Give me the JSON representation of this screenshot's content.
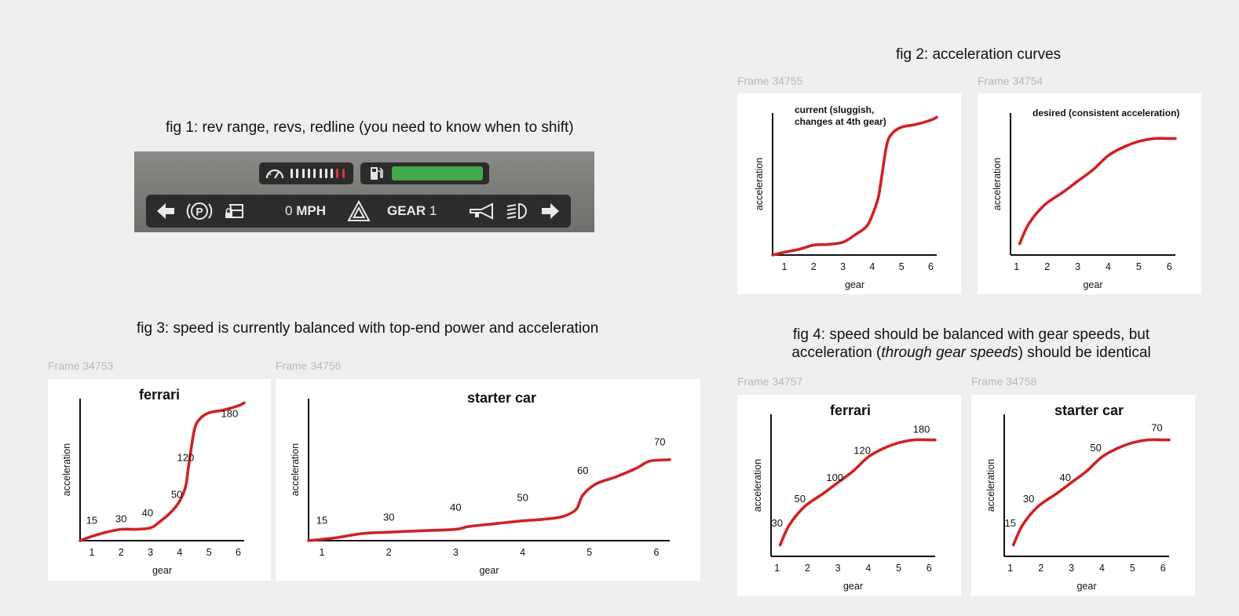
{
  "captions": {
    "fig1": "fig 1: rev range, revs, redline (you need to know when to shift)",
    "fig2": "fig 2: acceleration curves",
    "fig3": "fig 3: speed is currently balanced with top-end power and acceleration",
    "fig4_line1": "fig 4: speed should be balanced with gear speeds, but",
    "fig4_line2_pre": "acceleration (",
    "fig4_line2_em": "through gear speeds",
    "fig4_line2_post": ") should be identical"
  },
  "frames": {
    "f34755": "Frame 34755",
    "f34754": "Frame 34754",
    "f34753": "Frame 34753",
    "f34756": "Frame 34756",
    "f34757": "Frame 34757",
    "f34758": "Frame 34758"
  },
  "hud": {
    "speed_value": "0",
    "speed_unit": " MPH",
    "gear_label": "GEAR ",
    "gear_value": "1",
    "rev_segments": 10,
    "rev_active": 10,
    "redline_from": 8,
    "fuel_level": 1.0,
    "colors": {
      "fuel": "#43a84b",
      "redline": "#d9363a",
      "rev": "#e6e6e6"
    },
    "icons": [
      "arrow-left-icon",
      "parking-brake-icon",
      "door-lock-icon",
      "hazard-icon",
      "horn-icon",
      "headlight-icon",
      "arrow-right-icon",
      "tachometer-icon",
      "fuel-pump-icon"
    ]
  },
  "chart_data": [
    {
      "id": "chart-current",
      "type": "line",
      "title": "",
      "annotation": [
        "current (sluggish,",
        "changes at 4th gear)"
      ],
      "xlabel": "gear",
      "ylabel": "acceleration",
      "x_ticks": [
        "1",
        "2",
        "3",
        "4",
        "5",
        "6"
      ],
      "xlim": [
        0.6,
        6.2
      ],
      "ylim": [
        0,
        100
      ],
      "series": [
        {
          "x": [
            0.6,
            1.0,
            1.5,
            2.0,
            2.5,
            3.0,
            3.4,
            3.8,
            4.0,
            4.2,
            4.3,
            4.5,
            4.7,
            5.0,
            5.5,
            6.0,
            6.2
          ],
          "y": [
            0,
            2,
            4,
            7,
            7.5,
            9,
            14,
            20,
            28,
            40,
            52,
            78,
            86,
            90,
            92,
            95,
            97
          ]
        }
      ]
    },
    {
      "id": "chart-desired",
      "type": "line",
      "title": "",
      "annotation": [
        "desired (consistent acceleration)"
      ],
      "xlabel": "gear",
      "ylabel": "acceleration",
      "x_ticks": [
        "1",
        "2",
        "3",
        "4",
        "5",
        "6"
      ],
      "xlim": [
        0.8,
        6.2
      ],
      "ylim": [
        0,
        100
      ],
      "series": [
        {
          "x": [
            1.1,
            1.4,
            1.9,
            2.5,
            3.0,
            3.5,
            4.0,
            4.5,
            5.0,
            5.5,
            6.0,
            6.2
          ],
          "y": [
            8,
            22,
            35,
            44,
            52,
            60,
            70,
            76,
            80,
            82,
            82,
            82
          ]
        }
      ]
    },
    {
      "id": "chart-ferrari-3",
      "type": "line",
      "title": "ferrari",
      "xlabel": "gear",
      "ylabel": "acceleration",
      "x_ticks": [
        "1",
        "2",
        "3",
        "4",
        "5",
        "6"
      ],
      "xlim": [
        0.6,
        6.2
      ],
      "ylim": [
        0,
        100
      ],
      "series": [
        {
          "x": [
            0.6,
            1.0,
            1.5,
            2.0,
            2.5,
            3.0,
            3.3,
            3.7,
            4.0,
            4.2,
            4.3,
            4.5,
            4.7,
            5.0,
            5.5,
            6.0,
            6.2
          ],
          "y": [
            0,
            3,
            6,
            8,
            8,
            9,
            13,
            20,
            28,
            38,
            52,
            78,
            86,
            90,
            92,
            95,
            97
          ]
        }
      ],
      "point_labels": [
        {
          "text": "15",
          "x": 1.0,
          "y": 12
        },
        {
          "text": "30",
          "x": 2.0,
          "y": 13
        },
        {
          "text": "40",
          "x": 2.9,
          "y": 17
        },
        {
          "text": "50",
          "x": 3.9,
          "y": 30
        },
        {
          "text": "120",
          "x": 4.2,
          "y": 56
        },
        {
          "text": "180",
          "x": 5.7,
          "y": 87
        }
      ]
    },
    {
      "id": "chart-starter-3",
      "type": "line",
      "title": "starter car",
      "xlabel": "gear",
      "ylabel": "acceleration",
      "x_ticks": [
        "1",
        "2",
        "3",
        "4",
        "5",
        "6"
      ],
      "xlim": [
        0.8,
        6.2
      ],
      "ylim": [
        0,
        100
      ],
      "series": [
        {
          "x": [
            0.8,
            1.2,
            1.6,
            2.0,
            2.5,
            3.0,
            3.2,
            3.6,
            4.0,
            4.3,
            4.6,
            4.8,
            4.9,
            5.1,
            5.4,
            5.7,
            5.9,
            6.2
          ],
          "y": [
            0,
            2,
            5,
            6,
            7,
            8,
            10,
            12,
            14,
            15,
            17,
            22,
            32,
            40,
            45,
            51,
            56,
            57
          ]
        }
      ],
      "point_labels": [
        {
          "text": "15",
          "x": 1.0,
          "y": 12
        },
        {
          "text": "30",
          "x": 2.0,
          "y": 14
        },
        {
          "text": "40",
          "x": 3.0,
          "y": 21
        },
        {
          "text": "50",
          "x": 4.0,
          "y": 28
        },
        {
          "text": "60",
          "x": 4.9,
          "y": 47
        },
        {
          "text": "70",
          "x": 6.05,
          "y": 67
        }
      ]
    },
    {
      "id": "chart-ferrari-4",
      "type": "line",
      "title": "ferrari",
      "xlabel": "gear",
      "ylabel": "acceleration",
      "x_ticks": [
        "1",
        "2",
        "3",
        "4",
        "5",
        "6"
      ],
      "xlim": [
        0.8,
        6.2
      ],
      "ylim": [
        0,
        100
      ],
      "series": [
        {
          "x": [
            1.1,
            1.4,
            1.9,
            2.5,
            3.0,
            3.5,
            4.0,
            4.5,
            5.0,
            5.5,
            6.0,
            6.2
          ],
          "y": [
            8,
            22,
            35,
            44,
            52,
            60,
            70,
            76,
            80,
            82,
            82,
            82
          ]
        }
      ],
      "point_labels": [
        {
          "text": "30",
          "x": 1.0,
          "y": 21
        },
        {
          "text": "50",
          "x": 1.75,
          "y": 38
        },
        {
          "text": "100",
          "x": 2.9,
          "y": 53
        },
        {
          "text": "120",
          "x": 3.8,
          "y": 72
        },
        {
          "text": "180",
          "x": 5.75,
          "y": 87
        }
      ]
    },
    {
      "id": "chart-starter-4",
      "type": "line",
      "title": "starter car",
      "xlabel": "gear",
      "ylabel": "acceleration",
      "x_ticks": [
        "1",
        "2",
        "3",
        "4",
        "5",
        "6"
      ],
      "xlim": [
        0.8,
        6.2
      ],
      "ylim": [
        0,
        100
      ],
      "series": [
        {
          "x": [
            1.1,
            1.4,
            1.9,
            2.5,
            3.0,
            3.5,
            4.0,
            4.5,
            5.0,
            5.5,
            6.0,
            6.2
          ],
          "y": [
            8,
            22,
            35,
            44,
            52,
            60,
            70,
            76,
            80,
            82,
            82,
            82
          ]
        }
      ],
      "point_labels": [
        {
          "text": "15",
          "x": 1.0,
          "y": 21
        },
        {
          "text": "30",
          "x": 1.6,
          "y": 38
        },
        {
          "text": "40",
          "x": 2.8,
          "y": 53
        },
        {
          "text": "50",
          "x": 3.8,
          "y": 74
        },
        {
          "text": "70",
          "x": 5.8,
          "y": 88
        }
      ]
    }
  ]
}
